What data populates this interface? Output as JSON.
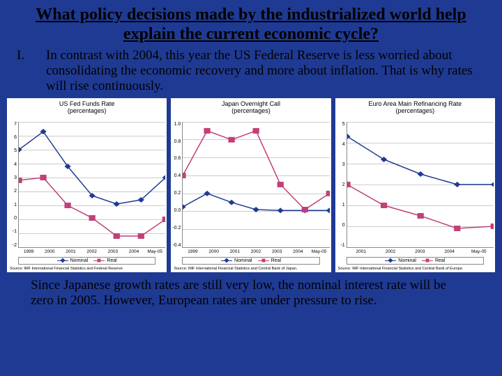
{
  "title": "What policy decisions made by the industrialized world help explain the current economic cycle?",
  "point_num": "I.",
  "point_text": "In contrast with 2004, this year the US Federal Reserve is less worried about consolidating the economic recovery and more about inflation. That is why rates will rise continuously.",
  "closing": "Since Japanese growth rates are still very low, the nominal interest rate will be zero in 2005. However, European rates are under pressure to rise.",
  "legend": {
    "nominal": "Nominal",
    "real": "Real"
  },
  "series_colors": {
    "nominal": "#1f3a93",
    "real": "#c04078"
  },
  "marker": {
    "nominal": "diamond",
    "real": "square",
    "size": 5
  },
  "line_width": 1.5,
  "grid_color": "#cccccc",
  "charts": [
    {
      "title_l1": "US Fed Funds Rate",
      "title_l2": "(percentages)",
      "ylim": [
        -2,
        7
      ],
      "ytick_step": 1,
      "xlabels": [
        "1999",
        "2000",
        "2001",
        "2002",
        "2003",
        "2004",
        "May-05"
      ],
      "nominal": [
        5.0,
        6.3,
        3.8,
        1.7,
        1.1,
        1.4,
        3.0
      ],
      "real": [
        2.8,
        3.0,
        1.0,
        0.1,
        -1.2,
        -1.2,
        0.0
      ],
      "source": "Source: IMF International Financial Statistics and Federal Reserve."
    },
    {
      "title_l1": "Japan Overnight Call",
      "title_l2": "(percentages)",
      "ylim": [
        -0.4,
        1.0
      ],
      "ytick_step": 0.2,
      "xlabels": [
        "1999",
        "2000",
        "2001",
        "2002",
        "2003",
        "2004",
        "May-05"
      ],
      "nominal": [
        0.05,
        0.2,
        0.1,
        0.02,
        0.01,
        0.01,
        0.01
      ],
      "real": [
        0.4,
        0.9,
        0.8,
        0.9,
        0.3,
        0.02,
        0.2
      ],
      "source": "Source: IMF International Financial Statistics and Central Bank of Japan."
    },
    {
      "title_l1": "Euro Area Main Refinancing Rate",
      "title_l2": "(percentages)",
      "ylim": [
        -1,
        5
      ],
      "ytick_step": 1,
      "xlabels": [
        "2001",
        "2002",
        "2003",
        "2004",
        "May-05"
      ],
      "nominal": [
        4.3,
        3.2,
        2.5,
        2.0,
        2.0
      ],
      "real": [
        2.0,
        1.0,
        0.5,
        -0.1,
        0.0
      ],
      "source": "Source: IMF International Financial Statistics and Central Bank of Europe."
    }
  ]
}
